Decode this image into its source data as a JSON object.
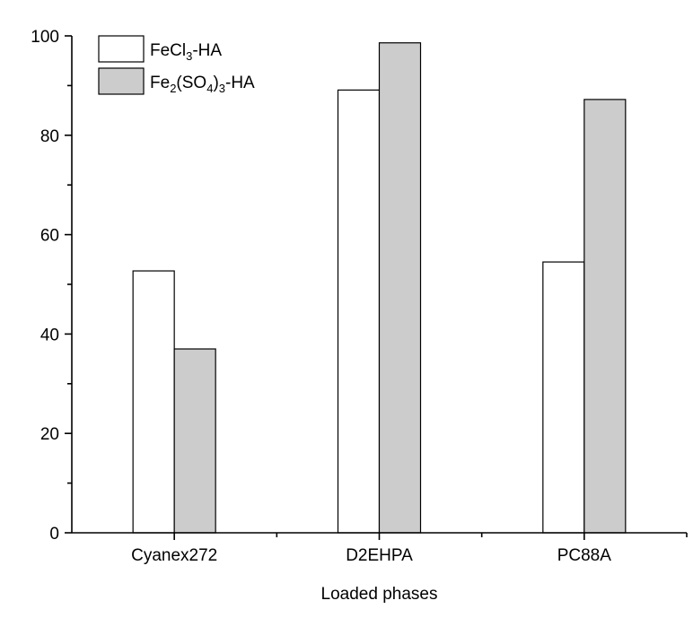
{
  "chart_data": {
    "type": "bar",
    "categories": [
      "Cyanex272",
      "D2EHPA",
      "PC88A"
    ],
    "series": [
      {
        "name": "FeCl3-HA",
        "legend": {
          "base": "FeCl",
          "sub1": "3",
          "mid": "-HA",
          "sub2": "",
          "tail": ""
        },
        "color": "#ffffff",
        "values": [
          52.7,
          89.1,
          54.5
        ]
      },
      {
        "name": "Fe2(SO4)3-HA",
        "legend": {
          "base": "Fe",
          "sub1": "2",
          "mid": "(SO",
          "sub2": "4",
          "tail": ")",
          "sub3": "3",
          "end": "-HA"
        },
        "color": "#cccccc",
        "values": [
          37.0,
          98.6,
          87.2
        ]
      }
    ],
    "xlabel": "Loaded phases",
    "ylabel": "",
    "ylim": [
      0,
      100
    ],
    "yticks": [
      0,
      20,
      40,
      60,
      80,
      100
    ],
    "minor_yticks": [
      10,
      30,
      50,
      70,
      90
    ],
    "grid": false,
    "legend_position": "top-left",
    "edge_color": "#000000"
  }
}
